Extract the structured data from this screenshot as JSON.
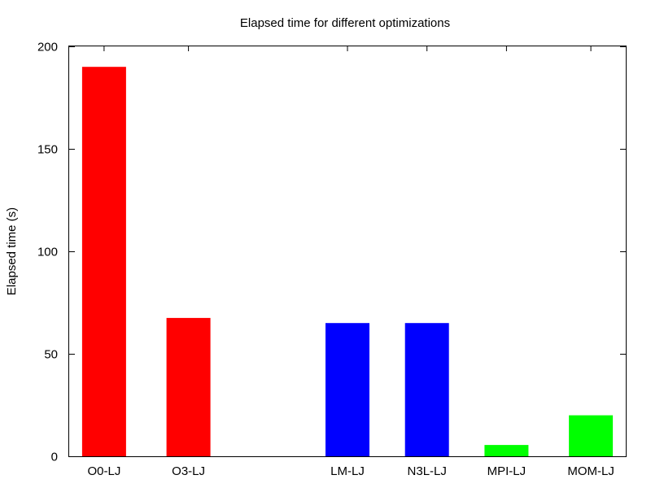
{
  "chart_data": {
    "type": "bar",
    "title": "Elapsed time for different optimizations",
    "xlabel": "",
    "ylabel": "Elapsed time (s)",
    "ylim": [
      0,
      200
    ],
    "yticks": [
      0,
      50,
      100,
      150,
      200
    ],
    "categories": [
      "O0-LJ",
      "O3-LJ",
      "",
      "LM-LJ",
      "N3L-LJ",
      "MPI-LJ",
      "MOM-LJ"
    ],
    "values": [
      190,
      67.5,
      null,
      65,
      65,
      5.5,
      20
    ],
    "colors": [
      "#ff0000",
      "#ff0000",
      null,
      "#0000ff",
      "#0000ff",
      "#00ff00",
      "#00ff00"
    ],
    "grid": false,
    "legend": "none"
  }
}
